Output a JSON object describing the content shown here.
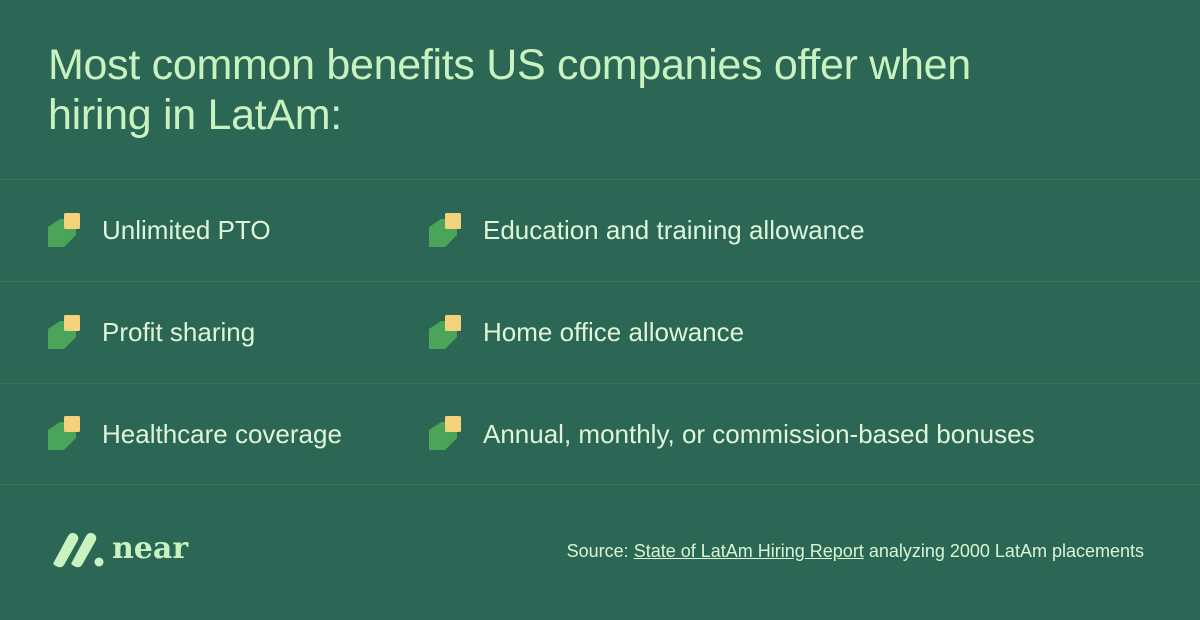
{
  "title": "Most common benefits US companies offer when hiring in LatAm:",
  "benefits": [
    "Unlimited PTO",
    "Education and training allowance",
    "Profit sharing",
    "Home office allowance",
    "Healthcare coverage",
    "Annual, monthly, or commission-based bonuses"
  ],
  "logo": "near",
  "source": {
    "prefix": "Source:",
    "link": "State of LatAm Hiring Report",
    "suffix": "analyzing 2000 LatAm placements"
  }
}
